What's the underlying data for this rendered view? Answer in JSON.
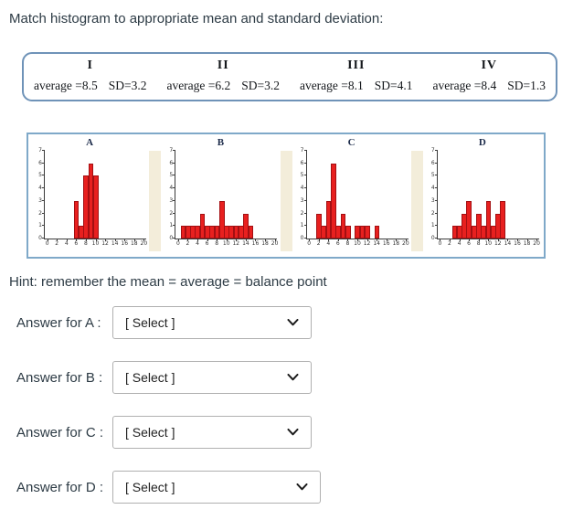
{
  "title": "Match histogram to appropriate mean and standard deviation:",
  "hint": "Hint: remember the mean = average = balance point",
  "options_box": {
    "columns": [
      {
        "numeral": "I",
        "average": "average =8.5",
        "sd": "SD=3.2"
      },
      {
        "numeral": "II",
        "average": "average =6.2",
        "sd": "SD=3.2"
      },
      {
        "numeral": "III",
        "average": "average =8.1",
        "sd": "SD=4.1"
      },
      {
        "numeral": "IV",
        "average": "average =8.4",
        "sd": "SD=1.3"
      }
    ]
  },
  "answers": [
    {
      "label": "Answer for A :",
      "value": "[ Select ]"
    },
    {
      "label": "Answer for B :",
      "value": "[ Select ]"
    },
    {
      "label": "Answer for C :",
      "value": "[ Select ]"
    },
    {
      "label": "Answer for D :",
      "value": "[ Select ]"
    }
  ],
  "colors": {
    "bar_fill": "#e8201f",
    "bar_stroke": "#a30f12",
    "panel_border": "#7fa9c9",
    "box_border": "#6f93b8",
    "strip": "#f3edda"
  },
  "chart_data": [
    {
      "type": "bar",
      "title": "A",
      "xlabel": "",
      "ylabel": "",
      "xlim": [
        -0.5,
        20.5
      ],
      "ylim": [
        0,
        7
      ],
      "x_ticks": [
        0,
        2,
        4,
        6,
        8,
        10,
        12,
        14,
        16,
        18,
        20
      ],
      "y_ticks": [
        0,
        1,
        2,
        3,
        4,
        5,
        6,
        7
      ],
      "bars": [
        {
          "x": 6,
          "count": 3
        },
        {
          "x": 7,
          "count": 1
        },
        {
          "x": 8,
          "count": 5
        },
        {
          "x": 9,
          "count": 6
        },
        {
          "x": 10,
          "count": 5
        }
      ]
    },
    {
      "type": "bar",
      "title": "B",
      "xlabel": "",
      "ylabel": "",
      "xlim": [
        -0.5,
        20.5
      ],
      "ylim": [
        0,
        7
      ],
      "x_ticks": [
        0,
        2,
        4,
        6,
        8,
        10,
        12,
        14,
        16,
        18,
        20
      ],
      "y_ticks": [
        0,
        1,
        2,
        3,
        4,
        5,
        6,
        7
      ],
      "bars": [
        {
          "x": 1,
          "count": 1
        },
        {
          "x": 2,
          "count": 1
        },
        {
          "x": 3,
          "count": 1
        },
        {
          "x": 4,
          "count": 1
        },
        {
          "x": 5,
          "count": 2
        },
        {
          "x": 6,
          "count": 1
        },
        {
          "x": 7,
          "count": 1
        },
        {
          "x": 8,
          "count": 1
        },
        {
          "x": 9,
          "count": 3
        },
        {
          "x": 10,
          "count": 1
        },
        {
          "x": 11,
          "count": 1
        },
        {
          "x": 12,
          "count": 1
        },
        {
          "x": 13,
          "count": 1
        },
        {
          "x": 14,
          "count": 2
        },
        {
          "x": 15,
          "count": 1
        }
      ]
    },
    {
      "type": "bar",
      "title": "C",
      "xlabel": "",
      "ylabel": "",
      "xlim": [
        -0.5,
        20.5
      ],
      "ylim": [
        0,
        7
      ],
      "x_ticks": [
        0,
        2,
        4,
        6,
        8,
        10,
        12,
        14,
        16,
        18,
        20
      ],
      "y_ticks": [
        0,
        1,
        2,
        3,
        4,
        5,
        6,
        7
      ],
      "bars": [
        {
          "x": 2,
          "count": 2
        },
        {
          "x": 3,
          "count": 1
        },
        {
          "x": 4,
          "count": 3
        },
        {
          "x": 5,
          "count": 6
        },
        {
          "x": 6,
          "count": 1
        },
        {
          "x": 7,
          "count": 2
        },
        {
          "x": 8,
          "count": 1
        },
        {
          "x": 10,
          "count": 1
        },
        {
          "x": 11,
          "count": 1
        },
        {
          "x": 12,
          "count": 1
        },
        {
          "x": 14,
          "count": 1
        }
      ]
    },
    {
      "type": "bar",
      "title": "D",
      "xlabel": "",
      "ylabel": "",
      "xlim": [
        -0.5,
        20.5
      ],
      "ylim": [
        0,
        7
      ],
      "x_ticks": [
        0,
        2,
        4,
        6,
        8,
        10,
        12,
        14,
        16,
        18,
        20
      ],
      "y_ticks": [
        0,
        1,
        2,
        3,
        4,
        5,
        6,
        7
      ],
      "bars": [
        {
          "x": 3,
          "count": 1
        },
        {
          "x": 4,
          "count": 1
        },
        {
          "x": 5,
          "count": 2
        },
        {
          "x": 6,
          "count": 3
        },
        {
          "x": 7,
          "count": 1
        },
        {
          "x": 8,
          "count": 2
        },
        {
          "x": 9,
          "count": 1
        },
        {
          "x": 10,
          "count": 3
        },
        {
          "x": 11,
          "count": 1
        },
        {
          "x": 12,
          "count": 2
        },
        {
          "x": 13,
          "count": 3
        }
      ]
    }
  ]
}
